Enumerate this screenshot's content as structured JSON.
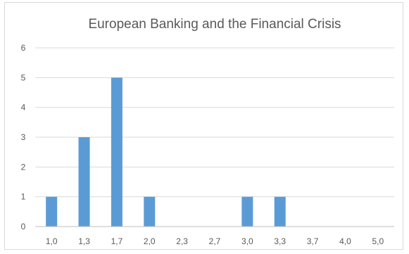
{
  "chart_data": {
    "type": "bar",
    "title": "European Banking and the Financial Crisis",
    "categories": [
      "1,0",
      "1,3",
      "1,7",
      "2,0",
      "2,3",
      "2,7",
      "3,0",
      "3,3",
      "3,7",
      "4,0",
      "5,0"
    ],
    "values": [
      1,
      3,
      5,
      1,
      0,
      0,
      1,
      1,
      0,
      0,
      0
    ],
    "ylim": [
      0,
      6
    ],
    "yticks": [
      "0",
      "1",
      "2",
      "3",
      "4",
      "5",
      "6"
    ],
    "xlabel": "",
    "ylabel": "",
    "grid": true,
    "legend": "none",
    "bar_color": "#5b9bd5"
  }
}
